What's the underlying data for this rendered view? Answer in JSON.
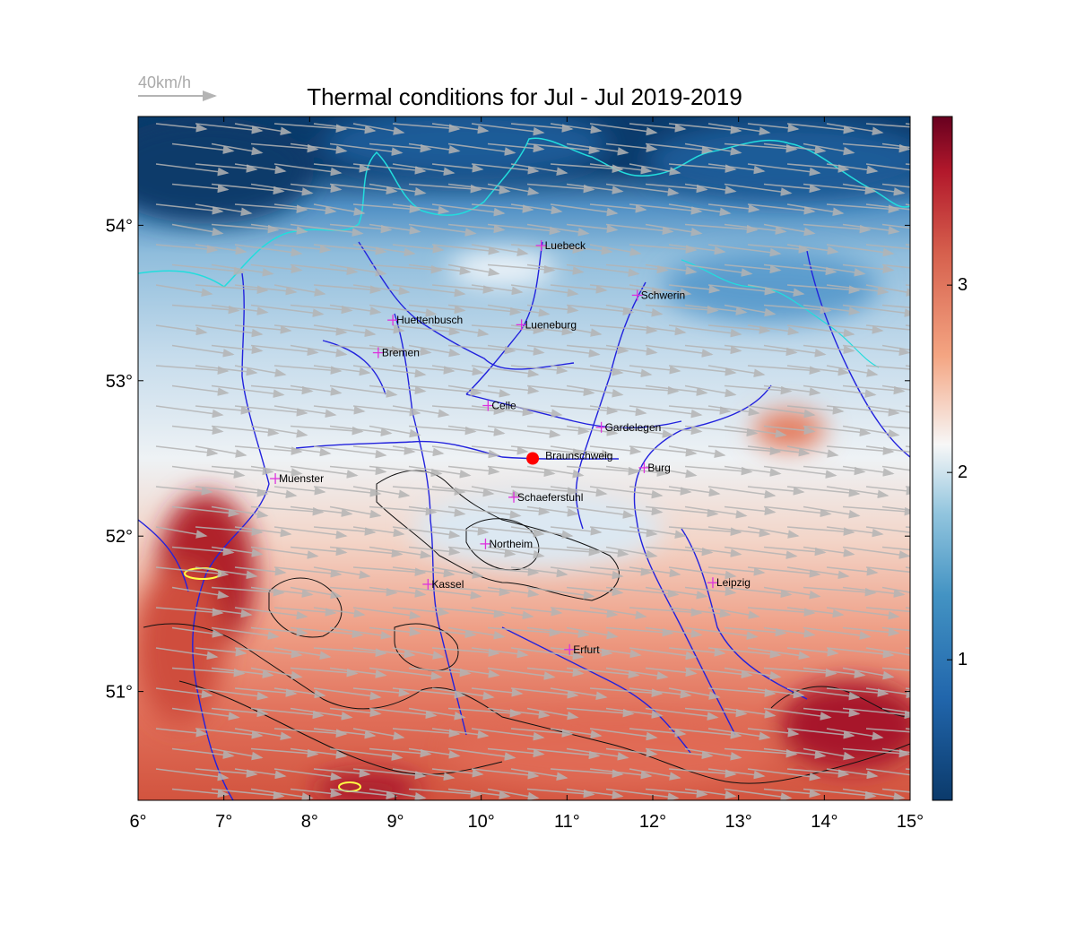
{
  "title": "Thermal conditions for Jul - Jul  2019-2019",
  "wind_scale": {
    "label": "40km/h"
  },
  "map": {
    "lon_ticks": [
      "6°",
      "7°",
      "8°",
      "9°",
      "10°",
      "11°",
      "12°",
      "13°",
      "14°",
      "15°"
    ],
    "lat_ticks": [
      "54°",
      "53°",
      "52°",
      "51°"
    ],
    "lon_range": [
      6,
      15
    ],
    "lat_range": [
      50.3,
      54.7
    ]
  },
  "colorbar": {
    "ticks": [
      "3",
      "2",
      "1"
    ],
    "range": [
      0.25,
      3.9
    ],
    "colors": [
      "#0b3a6b",
      "#2166ac",
      "#4393c3",
      "#92c5de",
      "#f7f7f7",
      "#f4a582",
      "#d6604d",
      "#b2182b",
      "#67001f"
    ]
  },
  "cities": [
    {
      "name": "Luebeck",
      "lon": 10.7,
      "lat": 53.87
    },
    {
      "name": "Schwerin",
      "lon": 11.82,
      "lat": 53.55
    },
    {
      "name": "Huettenbusch",
      "lon": 8.97,
      "lat": 53.39
    },
    {
      "name": "Lueneburg",
      "lon": 10.47,
      "lat": 53.36
    },
    {
      "name": "Bremen",
      "lon": 8.8,
      "lat": 53.18
    },
    {
      "name": "Celle",
      "lon": 10.08,
      "lat": 52.84
    },
    {
      "name": "Gardelegen",
      "lon": 11.4,
      "lat": 52.7
    },
    {
      "name": "Burg",
      "lon": 11.9,
      "lat": 52.44
    },
    {
      "name": "Muenster",
      "lon": 7.6,
      "lat": 52.37
    },
    {
      "name": "Schaeferstuhl",
      "lon": 10.38,
      "lat": 52.25
    },
    {
      "name": "Northeim",
      "lon": 10.05,
      "lat": 51.95
    },
    {
      "name": "Kassel",
      "lon": 9.38,
      "lat": 51.69
    },
    {
      "name": "Leipzig",
      "lon": 12.7,
      "lat": 51.7
    },
    {
      "name": "Erfurt",
      "lon": 11.03,
      "lat": 51.27
    }
  ],
  "highlight_city": {
    "name": "Braunschweig",
    "lon": 10.6,
    "lat": 52.5,
    "color": "#ff0000"
  },
  "colors": {
    "river": "#2222dd",
    "coastline": "#22dddd",
    "contour": "#111111",
    "wind_arrow": "#b4b4b4",
    "marker": "#dd33dd",
    "hot_spot_outline": "#ffff44"
  }
}
